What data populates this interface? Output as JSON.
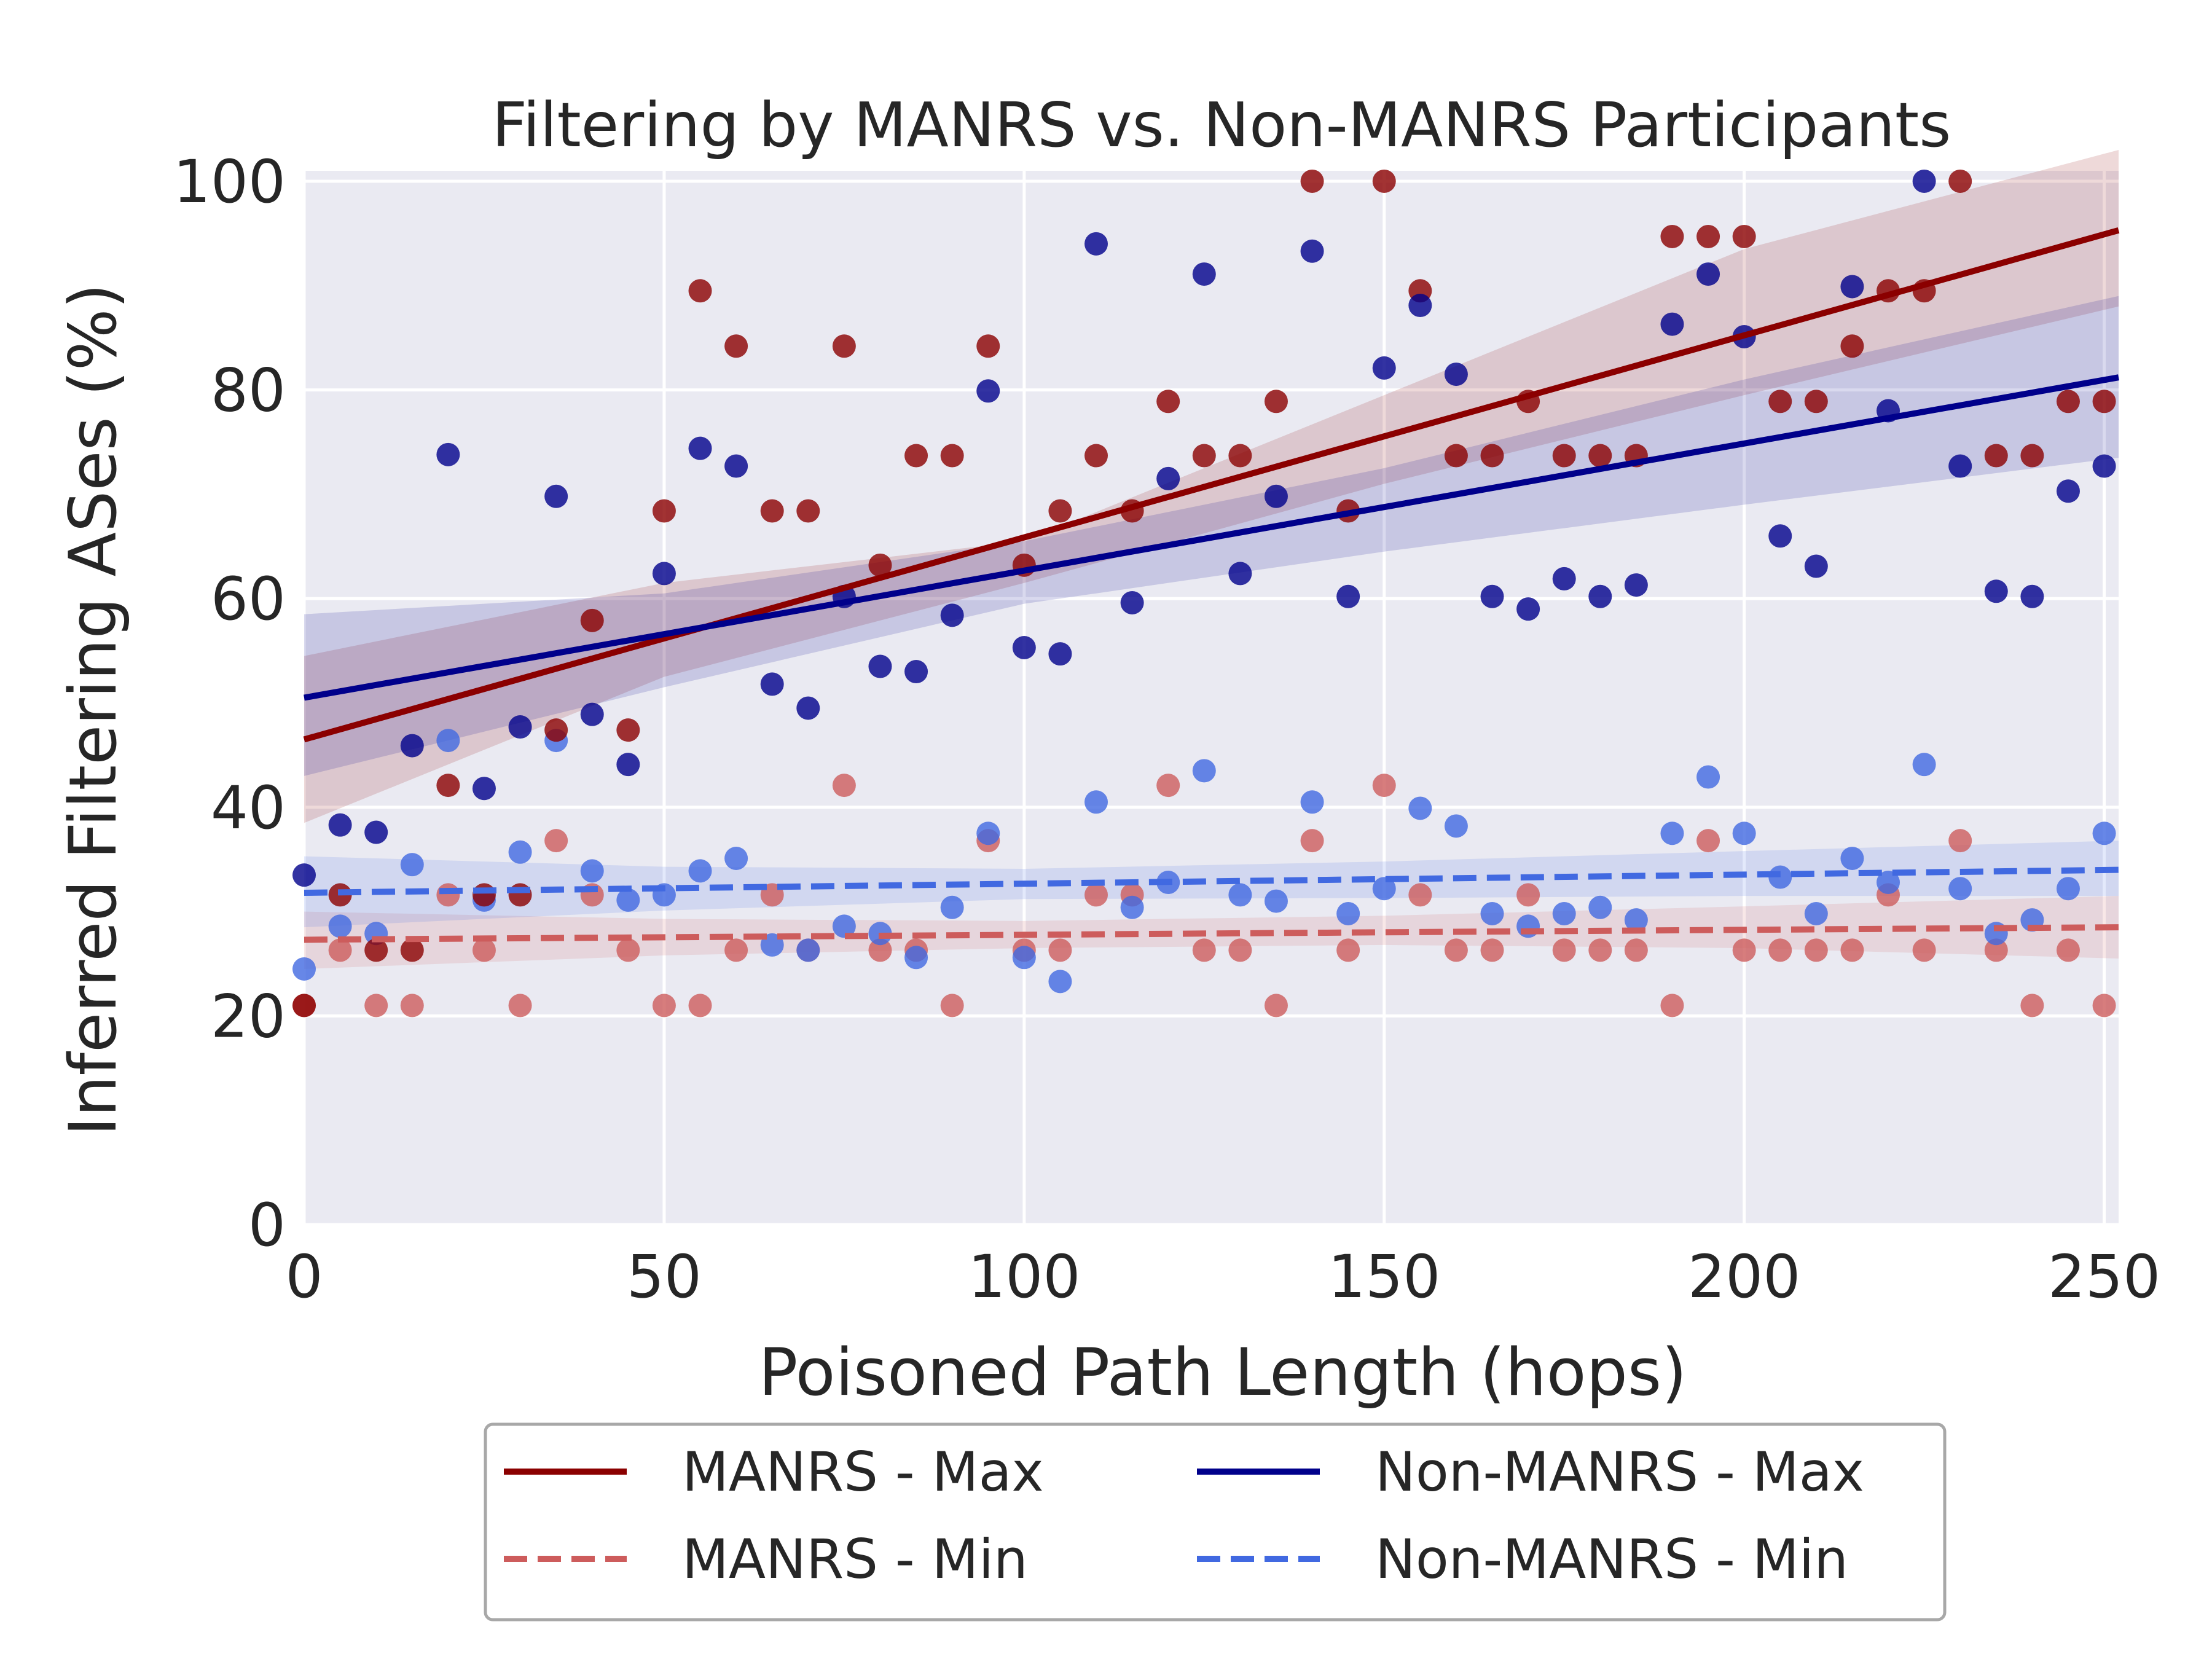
{
  "chart_data": {
    "type": "scatter",
    "title": "Filtering by MANRS vs. Non-MANRS Participants",
    "xlabel": "Poisoned Path Length (hops)",
    "ylabel": "Inferred Filtering ASes (%)",
    "xlim": [
      0,
      252
    ],
    "ylim": [
      0,
      101
    ],
    "xticks": [
      "0",
      "50",
      "100",
      "150",
      "200",
      "250"
    ],
    "yticks": [
      "0",
      "20",
      "40",
      "60",
      "80",
      "100"
    ],
    "grid": true,
    "background": "#eaeaf2",
    "legend_position": "below",
    "series": [
      {
        "name": "MANRS - Max",
        "color": "#8b0000",
        "line_style": "solid",
        "fit": {
          "x": [
            0,
            252
          ],
          "y": [
            46.5,
            95.3
          ]
        },
        "band": {
          "x": [
            0,
            50,
            100,
            150,
            200,
            252
          ],
          "lower": [
            38.5,
            52.5,
            61.5,
            71,
            79.5,
            88
          ],
          "upper": [
            54.5,
            61.5,
            65.5,
            79.5,
            93.5,
            103
          ]
        },
        "x": [
          0,
          5,
          10,
          15,
          20,
          25,
          30,
          35,
          40,
          45,
          50,
          55,
          60,
          65,
          70,
          75,
          80,
          85,
          90,
          95,
          100,
          105,
          110,
          115,
          120,
          125,
          130,
          135,
          140,
          145,
          150,
          155,
          160,
          165,
          170,
          175,
          180,
          185,
          190,
          195,
          200,
          205,
          210,
          215,
          220,
          225,
          230,
          235,
          240,
          245,
          250
        ],
        "y": [
          21,
          31.6,
          26.3,
          26.3,
          42.1,
          31.6,
          31.6,
          47.4,
          57.9,
          47.4,
          68.4,
          89.5,
          84.2,
          68.4,
          68.4,
          84.2,
          63.2,
          73.7,
          73.7,
          84.2,
          63.2,
          68.4,
          73.7,
          68.4,
          78.9,
          73.7,
          73.7,
          78.9,
          100,
          68.4,
          100,
          89.5,
          73.7,
          73.7,
          78.9,
          73.7,
          73.7,
          73.7,
          94.7,
          94.7,
          94.7,
          78.9,
          78.9,
          84.2,
          89.5,
          89.5,
          100,
          73.7,
          73.7,
          78.9,
          78.9
        ]
      },
      {
        "name": "Non-MANRS - Max",
        "color": "#00008b",
        "line_style": "solid",
        "fit": {
          "x": [
            0,
            252
          ],
          "y": [
            50.5,
            81.2
          ]
        },
        "band": {
          "x": [
            0,
            50,
            100,
            150,
            200,
            252
          ],
          "lower": [
            43,
            51.5,
            59.5,
            64.5,
            69,
            73.5
          ],
          "upper": [
            58.5,
            60.5,
            65.5,
            72.5,
            81,
            89
          ]
        },
        "x": [
          0,
          5,
          10,
          15,
          20,
          25,
          30,
          35,
          40,
          45,
          50,
          55,
          60,
          65,
          70,
          75,
          80,
          85,
          90,
          95,
          100,
          105,
          110,
          115,
          120,
          125,
          130,
          135,
          140,
          145,
          150,
          155,
          160,
          165,
          170,
          175,
          180,
          185,
          190,
          195,
          200,
          205,
          210,
          215,
          220,
          225,
          230,
          235,
          240,
          245,
          250
        ],
        "y": [
          33.5,
          38.3,
          37.6,
          45.9,
          73.8,
          41.8,
          47.7,
          69.8,
          48.9,
          44.1,
          62.4,
          74.4,
          72.7,
          51.8,
          49.5,
          60.2,
          53.5,
          53,
          58.4,
          79.9,
          55.3,
          54.7,
          94,
          59.6,
          71.5,
          91.1,
          62.4,
          69.8,
          93.3,
          60.2,
          82.1,
          88.1,
          81.5,
          60.2,
          59,
          61.9,
          60.2,
          61.3,
          86.3,
          91.1,
          85.1,
          66,
          63.1,
          89.9,
          78,
          100,
          72.7,
          60.7,
          60.2,
          70.3,
          72.7
        ]
      },
      {
        "name": "MANRS - Min",
        "color": "#cd5c5c",
        "line_style": "dashed",
        "fit": {
          "x": [
            0,
            252
          ],
          "y": [
            27.3,
            28.5
          ]
        },
        "band": {
          "x": [
            0,
            50,
            100,
            150,
            200,
            252
          ],
          "lower": [
            24.5,
            25.8,
            26.5,
            26.8,
            26.5,
            25.5
          ],
          "upper": [
            30,
            29.3,
            29.1,
            29.6,
            30.5,
            31.5
          ]
        },
        "x": [
          0,
          5,
          10,
          15,
          20,
          25,
          30,
          35,
          40,
          45,
          50,
          55,
          60,
          65,
          70,
          75,
          80,
          85,
          90,
          95,
          100,
          105,
          110,
          115,
          120,
          125,
          130,
          135,
          140,
          145,
          150,
          155,
          160,
          165,
          170,
          175,
          180,
          185,
          190,
          195,
          200,
          205,
          210,
          215,
          220,
          225,
          230,
          235,
          240,
          245,
          250
        ],
        "y": [
          21,
          26.3,
          21,
          21,
          31.6,
          26.3,
          21,
          36.8,
          31.6,
          26.3,
          21,
          21,
          26.3,
          31.6,
          26.3,
          42.1,
          26.3,
          26.3,
          21,
          36.8,
          26.3,
          26.3,
          31.6,
          31.6,
          42.1,
          26.3,
          26.3,
          21,
          36.8,
          26.3,
          42.1,
          31.6,
          26.3,
          26.3,
          31.6,
          26.3,
          26.3,
          26.3,
          21,
          36.8,
          26.3,
          26.3,
          26.3,
          26.3,
          31.6,
          26.3,
          36.8,
          26.3,
          21,
          26.3,
          21
        ]
      },
      {
        "name": "Non-MANRS - Min",
        "color": "#4169e1",
        "line_style": "dashed",
        "fit": {
          "x": [
            0,
            252
          ],
          "y": [
            31.8,
            34
          ]
        },
        "band": {
          "x": [
            0,
            50,
            100,
            150,
            200,
            252
          ],
          "lower": [
            28.5,
            30.1,
            31.2,
            31.3,
            31.5,
            31.5
          ],
          "upper": [
            35.3,
            34.3,
            34.1,
            34.8,
            35.8,
            36.8
          ]
        },
        "x": [
          0,
          5,
          10,
          15,
          20,
          25,
          30,
          35,
          40,
          45,
          50,
          55,
          60,
          65,
          70,
          75,
          80,
          85,
          90,
          95,
          100,
          105,
          110,
          115,
          120,
          125,
          130,
          135,
          140,
          145,
          150,
          155,
          160,
          165,
          170,
          175,
          180,
          185,
          190,
          195,
          200,
          205,
          210,
          215,
          220,
          225,
          230,
          235,
          240,
          245,
          250
        ],
        "y": [
          24.5,
          28.6,
          27.9,
          34.5,
          46.4,
          31.1,
          35.7,
          46.4,
          33.9,
          31.1,
          31.6,
          33.9,
          35.1,
          26.8,
          26.3,
          28.6,
          27.9,
          25.6,
          30.4,
          37.5,
          25.6,
          23.3,
          40.5,
          30.4,
          32.8,
          43.5,
          31.6,
          31,
          40.5,
          29.8,
          32.2,
          39.9,
          38.2,
          29.8,
          28.6,
          29.8,
          30.4,
          29.2,
          37.5,
          42.9,
          37.5,
          33.3,
          29.8,
          35.1,
          32.8,
          44.1,
          32.2,
          27.9,
          29.2,
          32.2,
          37.5
        ]
      }
    ],
    "legend": {
      "items": [
        {
          "label": "MANRS - Max",
          "color": "#8b0000",
          "style": "solid"
        },
        {
          "label": "Non-MANRS - Max",
          "color": "#00008b",
          "style": "solid"
        },
        {
          "label": "MANRS - Min",
          "color": "#cd5c5c",
          "style": "dashed"
        },
        {
          "label": "Non-MANRS - Min",
          "color": "#4169e1",
          "style": "dashed"
        }
      ]
    }
  }
}
